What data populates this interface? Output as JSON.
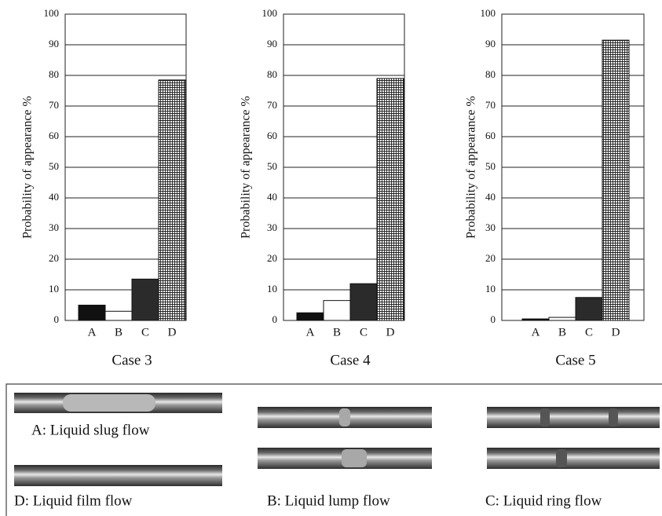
{
  "chart_data": [
    {
      "type": "bar",
      "title": "Case 3",
      "y_label": "Probability of appearance %",
      "categories": [
        "A",
        "B",
        "C",
        "D"
      ],
      "values": [
        5,
        3,
        13.5,
        78.5
      ],
      "colors": [
        "#111111",
        "#ffffff",
        "#2b2b2b",
        "#ffffff"
      ],
      "hatched": [
        false,
        false,
        false,
        true
      ],
      "ylim": [
        0,
        100
      ],
      "yticks": [
        0,
        10,
        20,
        30,
        40,
        50,
        60,
        70,
        80,
        90,
        100
      ],
      "grid": true
    },
    {
      "type": "bar",
      "title": "Case 4",
      "y_label": "Probability of appearance %",
      "categories": [
        "A",
        "B",
        "C",
        "D"
      ],
      "values": [
        2.5,
        6.5,
        12,
        79
      ],
      "colors": [
        "#111111",
        "#ffffff",
        "#2b2b2b",
        "#ffffff"
      ],
      "hatched": [
        false,
        false,
        false,
        true
      ],
      "ylim": [
        0,
        100
      ],
      "yticks": [
        0,
        10,
        20,
        30,
        40,
        50,
        60,
        70,
        80,
        90,
        100
      ],
      "grid": true
    },
    {
      "type": "bar",
      "title": "Case 5",
      "y_label": "Probability of appearance %",
      "categories": [
        "A",
        "B",
        "C",
        "D"
      ],
      "values": [
        0.5,
        1,
        7.5,
        91.5
      ],
      "colors": [
        "#111111",
        "#ffffff",
        "#2b2b2b",
        "#ffffff"
      ],
      "hatched": [
        false,
        false,
        false,
        true
      ],
      "ylim": [
        0,
        100
      ],
      "yticks": [
        0,
        10,
        20,
        30,
        40,
        50,
        60,
        70,
        80,
        90,
        100
      ],
      "grid": true
    }
  ],
  "flow_images": {
    "captions": [
      "A: Liquid slug flow",
      "D: Liquid film flow",
      "B: Liquid lump flow",
      "C: Liquid ring flow"
    ]
  }
}
